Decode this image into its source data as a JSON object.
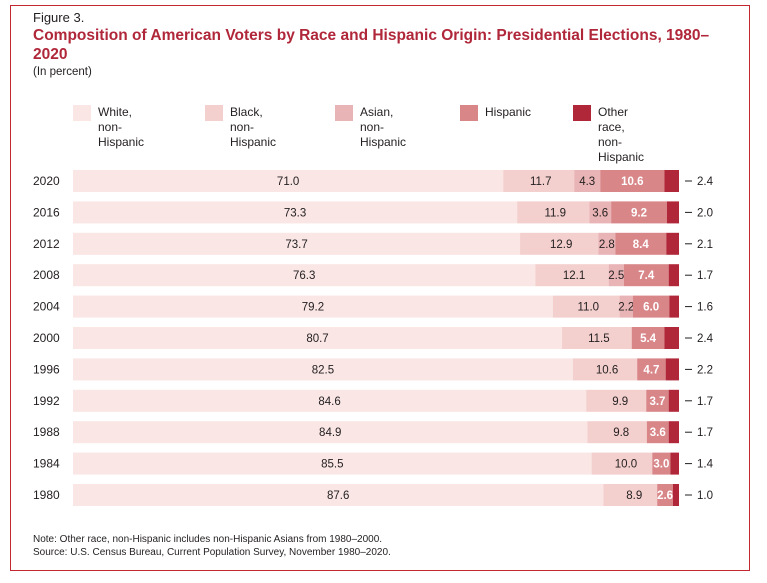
{
  "figure_label": "Figure 3.",
  "title": "Composition of American Voters by Race and Hispanic Origin: Presidential Elections, 1980–2020",
  "units": "(In percent)",
  "legend": [
    {
      "label": "White,\nnon-Hispanic",
      "color": "#f9e6e5"
    },
    {
      "label": "Black,\nnon-Hispanic",
      "color": "#f3cfcd"
    },
    {
      "label": "Asian,\nnon-Hispanic",
      "color": "#e9b4b5"
    },
    {
      "label": "Hispanic",
      "color": "#d98689"
    },
    {
      "label": "Other race,\nnon-Hispanic",
      "color": "#b0273a"
    }
  ],
  "note": "Note: Other race, non-Hispanic includes non-Hispanic Asians from 1980–2000.",
  "source": "Source: U.S. Census Bureau, Current Population Survey, November 1980–2020.",
  "chart_data": {
    "type": "bar",
    "orientation": "horizontal",
    "stacked": true,
    "categories": [
      "2020",
      "2016",
      "2012",
      "2008",
      "2004",
      "2000",
      "1996",
      "1992",
      "1988",
      "1984",
      "1980"
    ],
    "series": [
      {
        "name": "White, non-Hispanic",
        "values": [
          71.0,
          73.3,
          73.7,
          76.3,
          79.2,
          80.7,
          82.5,
          84.6,
          84.9,
          85.5,
          87.6
        ]
      },
      {
        "name": "Black, non-Hispanic",
        "values": [
          11.7,
          11.9,
          12.9,
          12.1,
          11.0,
          11.5,
          10.6,
          9.9,
          9.8,
          10.0,
          8.9
        ]
      },
      {
        "name": "Asian, non-Hispanic",
        "values": [
          4.3,
          3.6,
          2.8,
          2.5,
          2.2,
          null,
          null,
          null,
          null,
          null,
          null
        ]
      },
      {
        "name": "Hispanic",
        "values": [
          10.6,
          9.2,
          8.4,
          7.4,
          6.0,
          5.4,
          4.7,
          3.7,
          3.6,
          3.0,
          2.6
        ]
      },
      {
        "name": "Other race, non-Hispanic",
        "values": [
          2.4,
          2.0,
          2.1,
          1.7,
          1.6,
          2.4,
          2.2,
          1.7,
          1.7,
          1.4,
          1.0
        ]
      }
    ],
    "xlim": [
      0,
      100
    ],
    "legend_position": "top"
  }
}
